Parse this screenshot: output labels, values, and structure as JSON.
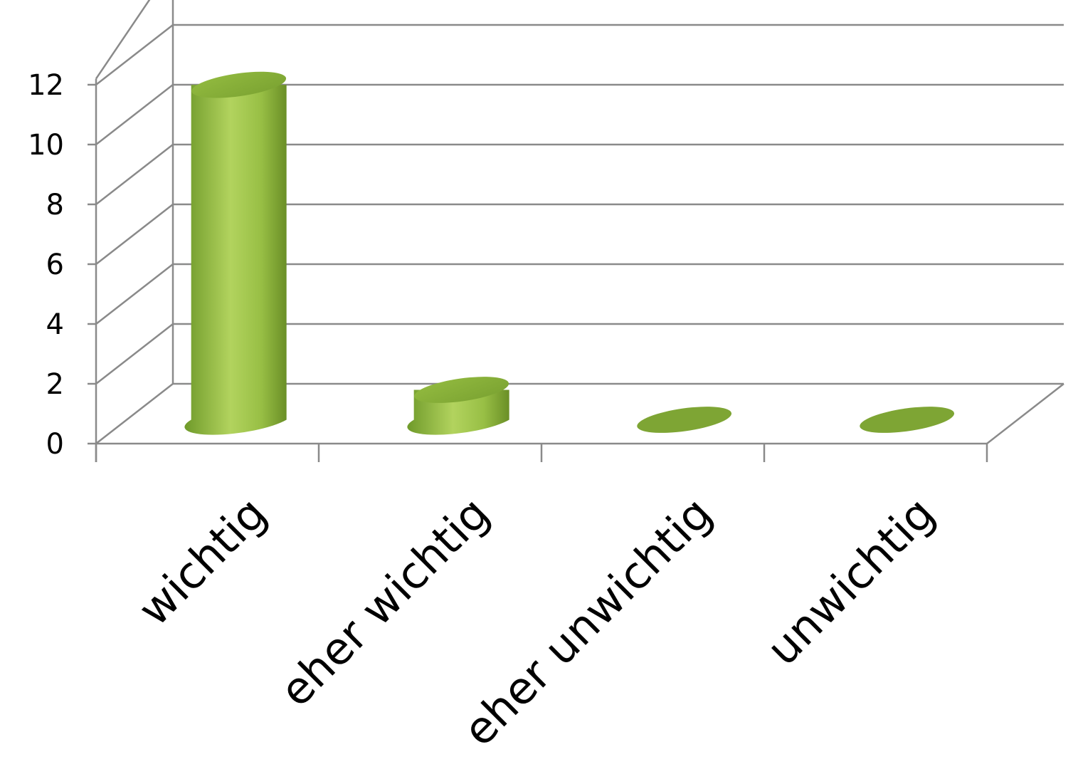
{
  "chart_data": {
    "type": "bar",
    "style": "3d-cylinder",
    "title": "",
    "xlabel": "",
    "ylabel": "",
    "categories": [
      "wichtig",
      "eher wichtig",
      "eher unwichtig",
      "unwichtig"
    ],
    "values": [
      11.2,
      1.0,
      0,
      0
    ],
    "ylim": [
      0,
      12
    ],
    "yticks": [
      0,
      2,
      4,
      6,
      8,
      10,
      12
    ],
    "ytick_labels": [
      "0",
      "2",
      "4",
      "6",
      "8",
      "10",
      "12"
    ],
    "grid": true,
    "legend": "none",
    "colors": {
      "bar_light": "#b5d65c",
      "bar_mid": "#8fb63a",
      "bar_dark": "#6a8f26",
      "grid": "#8a8a8a"
    }
  }
}
